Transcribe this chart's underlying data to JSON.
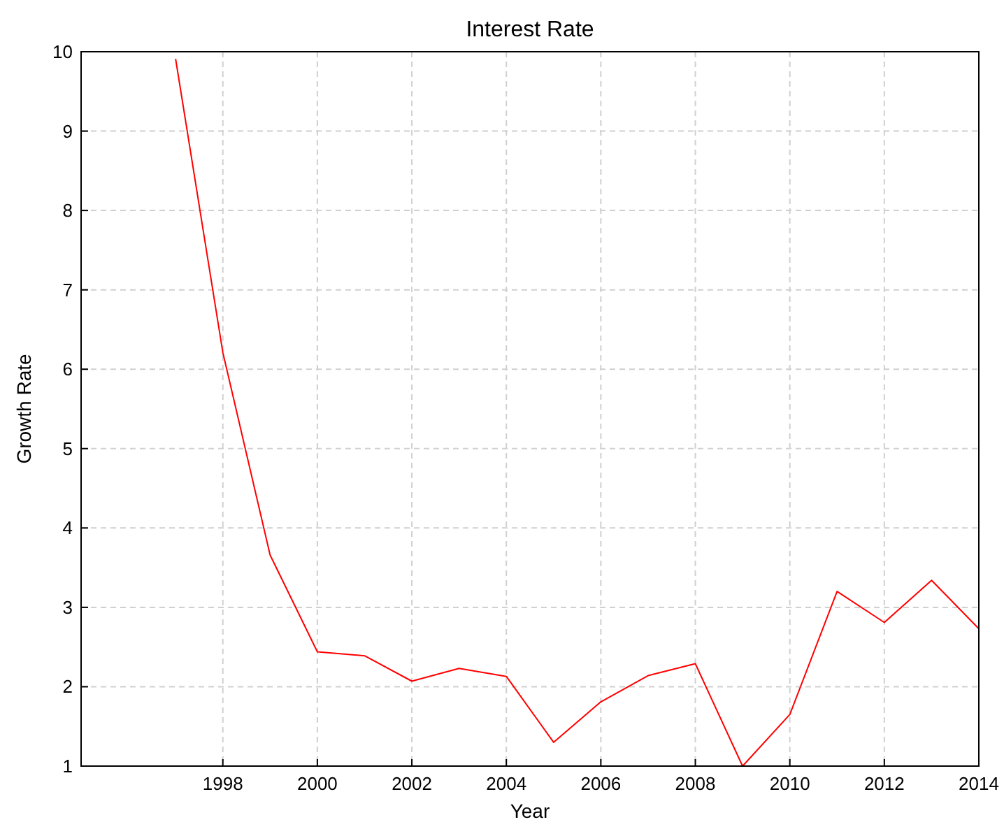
{
  "chart_data": {
    "type": "line",
    "title": "Interest Rate",
    "xlabel": "Year",
    "ylabel": "Growth Rate",
    "x": [
      1997,
      1998,
      1999,
      2000,
      2001,
      2002,
      2003,
      2004,
      2005,
      2006,
      2007,
      2008,
      2009,
      2010,
      2011,
      2012,
      2013,
      2014
    ],
    "series": [
      {
        "color": "#ff0000",
        "values": [
          9.91,
          6.21,
          3.66,
          2.44,
          2.39,
          2.07,
          2.23,
          2.13,
          1.3,
          1.81,
          2.14,
          2.29,
          1.0,
          1.65,
          3.2,
          2.81,
          3.34,
          2.73
        ]
      }
    ],
    "xlim": [
      1995,
      2014
    ],
    "xticks": [
      1998,
      2000,
      2002,
      2004,
      2006,
      2008,
      2010,
      2012,
      2014
    ],
    "ylim": [
      1,
      10
    ],
    "yticks": [
      1,
      2,
      3,
      4,
      5,
      6,
      7,
      8,
      9,
      10
    ],
    "grid": true,
    "marker": "none",
    "line_style": "solid"
  }
}
